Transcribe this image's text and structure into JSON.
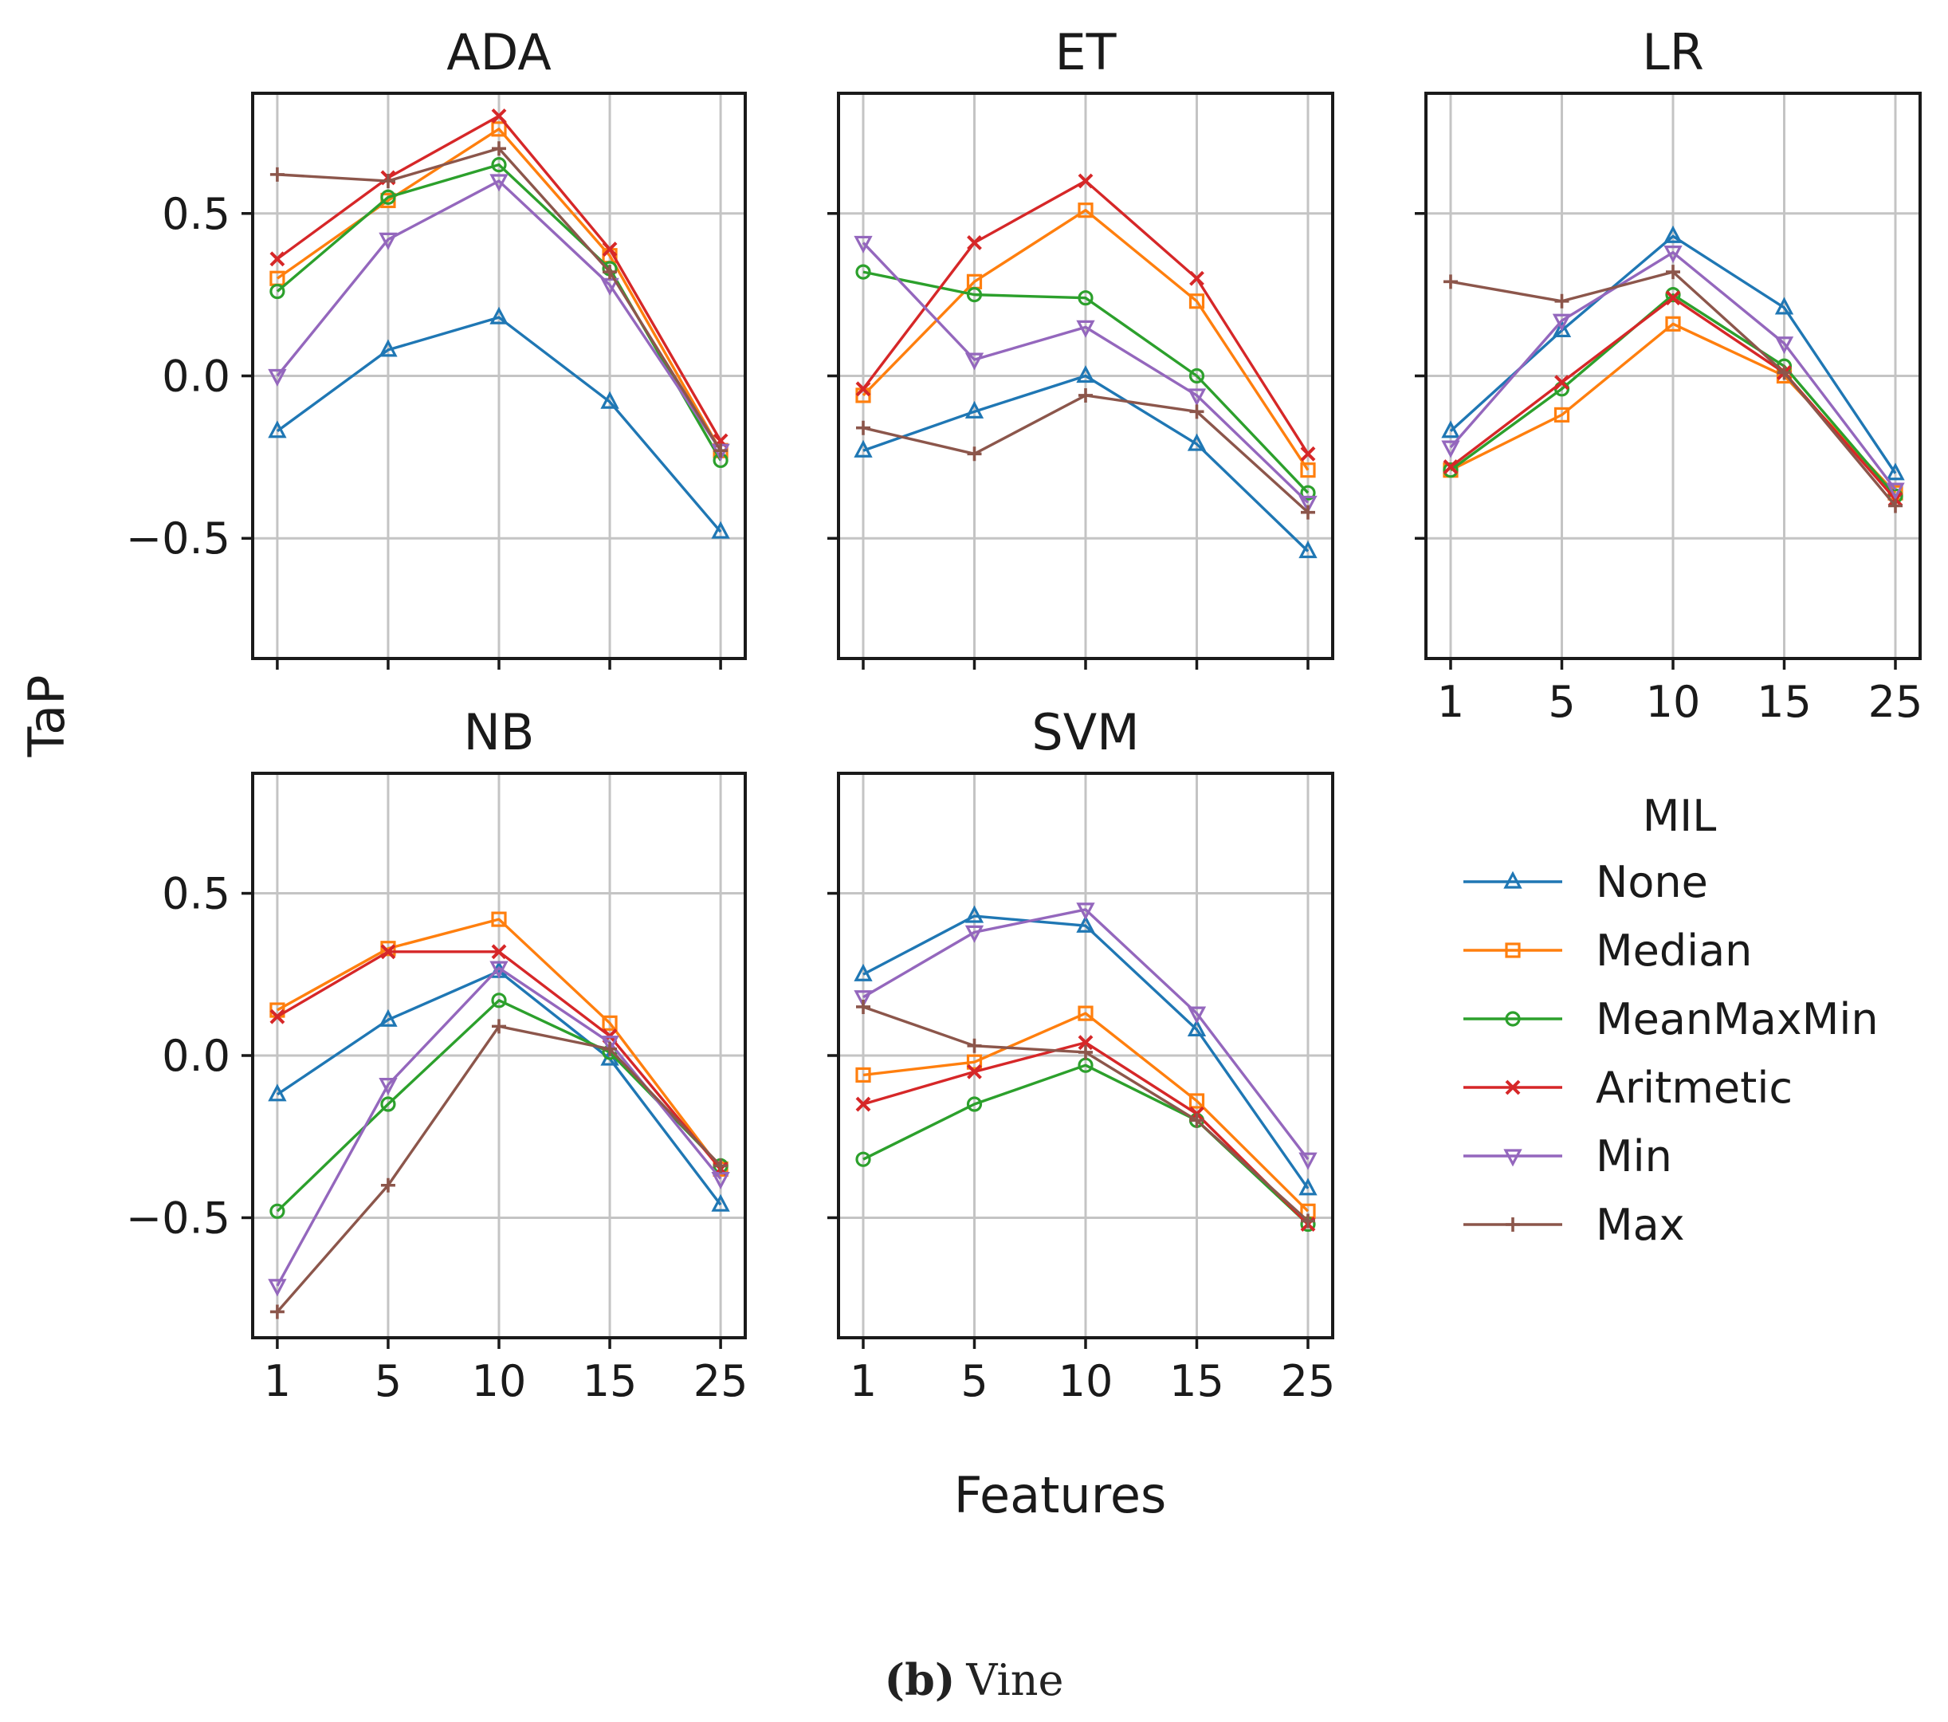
{
  "figure": {
    "ylabel": "TaP",
    "xlabel": "Features",
    "caption_letter": "(b)",
    "caption_text": "Vine"
  },
  "legend": {
    "title": "MIL",
    "placement": "right"
  },
  "chart_data": {
    "type": "line",
    "grid": true,
    "x": [
      1,
      5,
      10,
      15,
      25
    ],
    "x_tick_labels": [
      "1",
      "5",
      "10",
      "15",
      "25"
    ],
    "ylim": [
      -0.87,
      0.87
    ],
    "y_ticks": [
      0.5,
      0.0,
      -0.5
    ],
    "y_tick_labels": [
      "0.5",
      "0.0",
      "−0.5"
    ],
    "series_styles": [
      {
        "name": "None",
        "color": "#1f77b4",
        "marker": "triangle-up"
      },
      {
        "name": "Median",
        "color": "#ff7f0e",
        "marker": "square"
      },
      {
        "name": "MeanMaxMin",
        "color": "#2ca02c",
        "marker": "circle"
      },
      {
        "name": "Aritmetic",
        "color": "#d62728",
        "marker": "x"
      },
      {
        "name": "Min",
        "color": "#9467bd",
        "marker": "triangle-down"
      },
      {
        "name": "Max",
        "color": "#8c564b",
        "marker": "plus"
      }
    ],
    "panels": [
      {
        "title": "ADA",
        "series": [
          {
            "name": "None",
            "values": [
              -0.17,
              0.08,
              0.18,
              -0.08,
              -0.48
            ]
          },
          {
            "name": "Median",
            "values": [
              0.3,
              0.54,
              0.76,
              0.37,
              -0.23
            ]
          },
          {
            "name": "MeanMaxMin",
            "values": [
              0.26,
              0.55,
              0.65,
              0.33,
              -0.26
            ]
          },
          {
            "name": "Aritmetic",
            "values": [
              0.36,
              0.61,
              0.8,
              0.39,
              -0.2
            ]
          },
          {
            "name": "Min",
            "values": [
              0.0,
              0.42,
              0.6,
              0.28,
              -0.23
            ]
          },
          {
            "name": "Max",
            "values": [
              0.62,
              0.6,
              0.7,
              0.32,
              -0.23
            ]
          }
        ]
      },
      {
        "title": "ET",
        "series": [
          {
            "name": "None",
            "values": [
              -0.23,
              -0.11,
              0.0,
              -0.21,
              -0.54
            ]
          },
          {
            "name": "Median",
            "values": [
              -0.06,
              0.29,
              0.51,
              0.23,
              -0.29
            ]
          },
          {
            "name": "MeanMaxMin",
            "values": [
              0.32,
              0.25,
              0.24,
              0.0,
              -0.36
            ]
          },
          {
            "name": "Aritmetic",
            "values": [
              -0.04,
              0.41,
              0.6,
              0.3,
              -0.24
            ]
          },
          {
            "name": "Min",
            "values": [
              0.41,
              0.05,
              0.15,
              -0.06,
              -0.39
            ]
          },
          {
            "name": "Max",
            "values": [
              -0.16,
              -0.24,
              -0.06,
              -0.11,
              -0.42
            ]
          }
        ]
      },
      {
        "title": "LR",
        "series": [
          {
            "name": "None",
            "values": [
              -0.17,
              0.14,
              0.43,
              0.21,
              -0.3
            ]
          },
          {
            "name": "Median",
            "values": [
              -0.29,
              -0.12,
              0.16,
              0.0,
              -0.36
            ]
          },
          {
            "name": "MeanMaxMin",
            "values": [
              -0.29,
              -0.04,
              0.25,
              0.03,
              -0.37
            ]
          },
          {
            "name": "Aritmetic",
            "values": [
              -0.28,
              -0.02,
              0.24,
              0.01,
              -0.38
            ]
          },
          {
            "name": "Min",
            "values": [
              -0.22,
              0.17,
              0.38,
              0.1,
              -0.35
            ]
          },
          {
            "name": "Max",
            "values": [
              0.29,
              0.23,
              0.32,
              0.01,
              -0.4
            ]
          }
        ]
      },
      {
        "title": "NB",
        "series": [
          {
            "name": "None",
            "values": [
              -0.12,
              0.11,
              0.26,
              -0.01,
              -0.46
            ]
          },
          {
            "name": "Median",
            "values": [
              0.14,
              0.33,
              0.42,
              0.1,
              -0.35
            ]
          },
          {
            "name": "MeanMaxMin",
            "values": [
              -0.48,
              -0.15,
              0.17,
              0.01,
              -0.34
            ]
          },
          {
            "name": "Aritmetic",
            "values": [
              0.12,
              0.32,
              0.32,
              0.06,
              -0.35
            ]
          },
          {
            "name": "Min",
            "values": [
              -0.71,
              -0.09,
              0.27,
              0.04,
              -0.38
            ]
          },
          {
            "name": "Max",
            "values": [
              -0.79,
              -0.4,
              0.09,
              0.02,
              -0.34
            ]
          }
        ]
      },
      {
        "title": "SVM",
        "series": [
          {
            "name": "None",
            "values": [
              0.25,
              0.43,
              0.4,
              0.08,
              -0.41
            ]
          },
          {
            "name": "Median",
            "values": [
              -0.06,
              -0.02,
              0.13,
              -0.14,
              -0.48
            ]
          },
          {
            "name": "MeanMaxMin",
            "values": [
              -0.32,
              -0.15,
              -0.03,
              -0.2,
              -0.52
            ]
          },
          {
            "name": "Aritmetic",
            "values": [
              -0.15,
              -0.05,
              0.04,
              -0.18,
              -0.52
            ]
          },
          {
            "name": "Min",
            "values": [
              0.18,
              0.38,
              0.45,
              0.13,
              -0.32
            ]
          },
          {
            "name": "Max",
            "values": [
              0.15,
              0.03,
              0.01,
              -0.2,
              -0.51
            ]
          }
        ]
      }
    ]
  }
}
